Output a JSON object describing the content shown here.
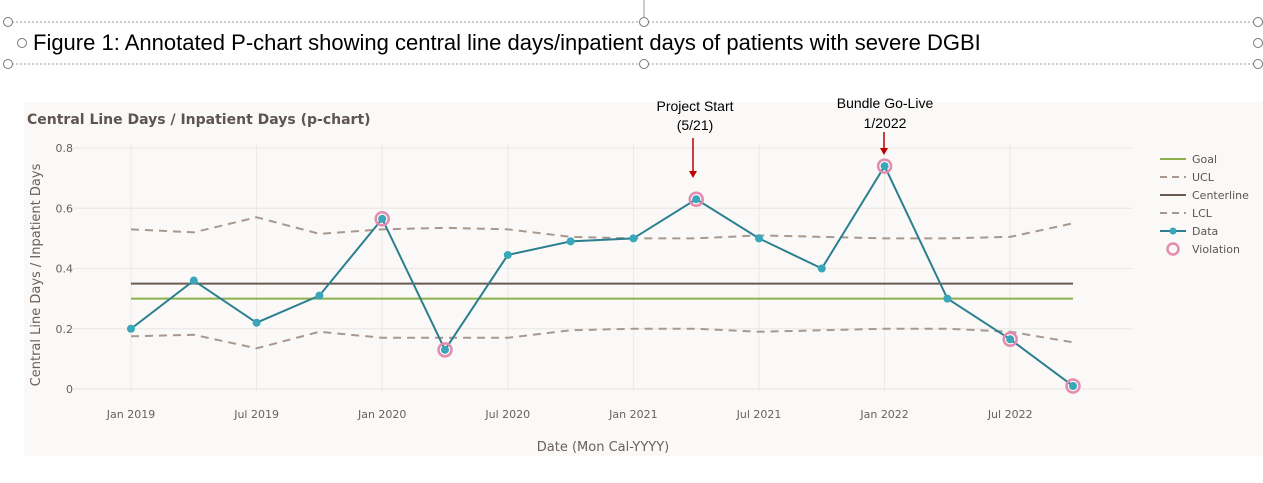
{
  "caption": "Figure 1: Annotated P-chart showing central line days/inpatient days of patients with severe DGBI",
  "annotations": [
    {
      "line1": "Project Start",
      "line2": "(5/21)"
    },
    {
      "line1": "Bundle Go-Live",
      "line2": "1/2022"
    }
  ],
  "colors": {
    "goal": "#8cb04a",
    "ucl_lcl": "#a8988e",
    "centerline": "#6b5a52",
    "data": "#2b7f8f",
    "data_marker": "#3aa6b9",
    "violation": "#e48bb0",
    "arrow": "#c00000"
  },
  "chart_data": {
    "type": "line",
    "title": "Central Line Days / Inpatient Days (p-chart)",
    "xlabel": "Date (Mon Cal-YYYY)",
    "ylabel": "Central Line Days / Inpatient Days",
    "ylim": [
      0,
      0.8
    ],
    "yticks": [
      0,
      0.2,
      0.4,
      0.6,
      0.8
    ],
    "ytick_labels": [
      "0",
      "0.2",
      "0.4",
      "0.6",
      "0.8"
    ],
    "xticks": [
      "2019-01",
      "2019-07",
      "2020-01",
      "2020-07",
      "2021-01",
      "2021-07",
      "2022-01",
      "2022-07"
    ],
    "xtick_labels": [
      "Jan 2019",
      "Jul 2019",
      "Jan 2020",
      "Jul 2020",
      "Jan 2021",
      "Jul 2021",
      "Jan 2022",
      "Jul 2022"
    ],
    "x": [
      "2019-01",
      "2019-04",
      "2019-07",
      "2019-10",
      "2020-01",
      "2020-04",
      "2020-07",
      "2020-10",
      "2021-01",
      "2021-04",
      "2021-07",
      "2021-10",
      "2022-01",
      "2022-04",
      "2022-07",
      "2022-10"
    ],
    "grid": true,
    "legend_position": "right",
    "legend": [
      "Goal",
      "UCL",
      "Centerline",
      "LCL",
      "Data",
      "Violation"
    ],
    "series": [
      {
        "name": "Goal",
        "values": [
          0.3,
          0.3,
          0.3,
          0.3,
          0.3,
          0.3,
          0.3,
          0.3,
          0.3,
          0.3,
          0.3,
          0.3,
          0.3,
          0.3,
          0.3,
          0.3
        ]
      },
      {
        "name": "UCL",
        "values": [
          0.53,
          0.52,
          0.57,
          0.515,
          0.53,
          0.535,
          0.53,
          0.505,
          0.5,
          0.5,
          0.51,
          0.505,
          0.5,
          0.5,
          0.505,
          0.55
        ]
      },
      {
        "name": "Centerline",
        "values": [
          0.35,
          0.35,
          0.35,
          0.35,
          0.35,
          0.35,
          0.35,
          0.35,
          0.35,
          0.35,
          0.35,
          0.35,
          0.35,
          0.35,
          0.35,
          0.35
        ]
      },
      {
        "name": "LCL",
        "values": [
          0.175,
          0.18,
          0.135,
          0.19,
          0.17,
          0.17,
          0.17,
          0.195,
          0.2,
          0.2,
          0.19,
          0.195,
          0.2,
          0.2,
          0.19,
          0.155
        ]
      },
      {
        "name": "Data",
        "values": [
          0.2,
          0.36,
          0.22,
          0.31,
          0.565,
          0.13,
          0.445,
          0.49,
          0.5,
          0.63,
          0.5,
          0.4,
          0.74,
          0.3,
          0.165,
          0.01
        ]
      }
    ],
    "violations": [
      "2020-01",
      "2020-04",
      "2021-04",
      "2022-01",
      "2022-07",
      "2022-10"
    ]
  }
}
